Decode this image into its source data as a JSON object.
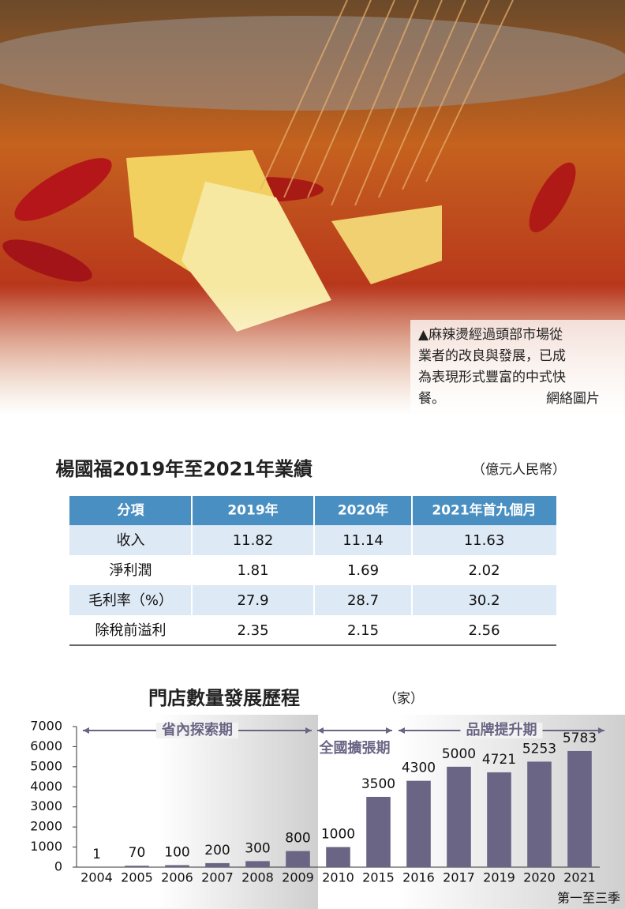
{
  "caption": {
    "lines": [
      "▲麻辣燙經過頭部市場從",
      "業者的改良與發展，已成",
      "為表現形式豐富的中式快",
      "餐。"
    ],
    "credit": "網絡圖片"
  },
  "table": {
    "title": "楊國福2019年至2021年業績",
    "unit": "（億元人民幣）",
    "header": [
      "分項",
      "2019年",
      "2020年",
      "2021年首九個月"
    ],
    "rows": [
      [
        "收入",
        "11.82",
        "11.14",
        "11.63"
      ],
      [
        "淨利潤",
        "1.81",
        "1.69",
        "2.02"
      ],
      [
        "毛利率（%）",
        "27.9",
        "28.7",
        "30.2"
      ],
      [
        "除稅前溢利",
        "2.35",
        "2.15",
        "2.56"
      ]
    ]
  },
  "chart_data": {
    "type": "bar",
    "title": "門店數量發展歷程",
    "unit": "（家）",
    "categories": [
      "2004",
      "2005",
      "2006",
      "2007",
      "2008",
      "2009",
      "2010",
      "2015",
      "2016",
      "2017",
      "2019",
      "2020",
      "2021"
    ],
    "values": [
      1,
      70,
      100,
      200,
      300,
      800,
      1000,
      3500,
      4300,
      5000,
      4721,
      5253,
      5783
    ],
    "color": "#6a6584",
    "ylim": [
      0,
      7000
    ],
    "yticks": [
      0,
      1000,
      2000,
      3000,
      4000,
      5000,
      6000,
      7000
    ],
    "phases": [
      "省內探索期",
      "全國擴張期",
      "品牌提升期"
    ],
    "note": "第一至三季"
  }
}
